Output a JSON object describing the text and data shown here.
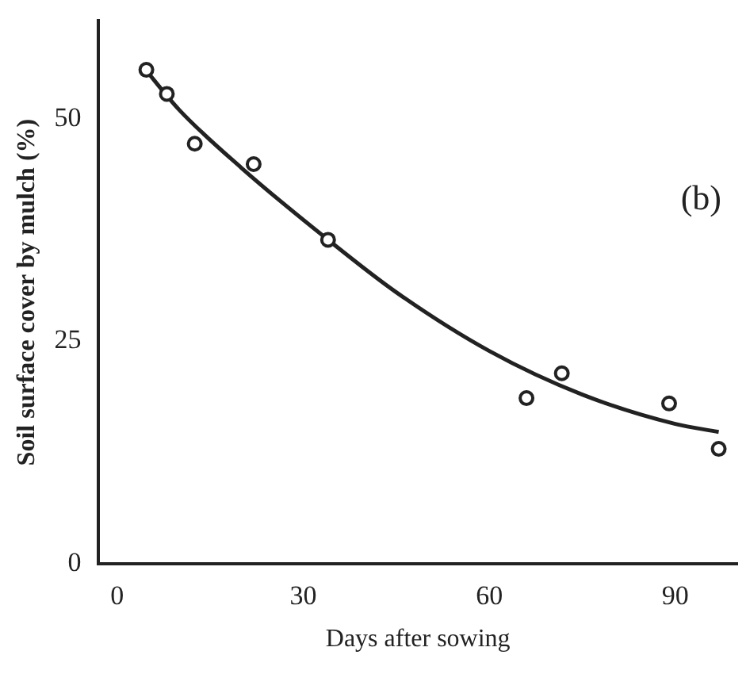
{
  "chart_data": {
    "type": "scatter",
    "xlabel": "Days after sowing",
    "ylabel": "Soil surface cover by mulch (%)",
    "annotations": [
      "(b)"
    ],
    "xlim": [
      -3,
      100
    ],
    "ylim": [
      0,
      61
    ],
    "xticks": [
      0,
      30,
      60,
      90
    ],
    "yticks": [
      0,
      25,
      50
    ],
    "grid": false,
    "legend": false,
    "series": [
      {
        "color": "#222222",
        "marker": "circle",
        "x": [
          4.7,
          8,
          12.5,
          22,
          34,
          66,
          71.7,
          89,
          97
        ],
        "values": [
          55.5,
          52.8,
          47.2,
          44.9,
          36.4,
          18.6,
          21.4,
          18,
          12.9
        ]
      },
      {
        "type": "line",
        "color": "#222222",
        "marker": "none",
        "line_style": "solid",
        "x": [
          4,
          10,
          20,
          34,
          45,
          60,
          75,
          90,
          97
        ],
        "values": [
          56,
          51,
          44.5,
          36.4,
          30.5,
          23.9,
          19,
          15.7,
          14.8
        ]
      }
    ]
  }
}
